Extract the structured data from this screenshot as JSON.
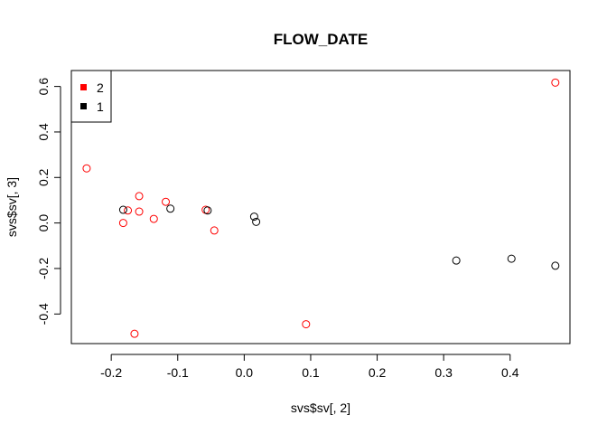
{
  "chart_data": {
    "type": "scatter",
    "title": "FLOW_DATE",
    "xlabel": "svs$sv[, 2]",
    "ylabel": "svs$sv[, 3]",
    "xlim": [
      -0.26,
      0.49
    ],
    "ylim": [
      -0.53,
      0.67
    ],
    "x_ticks": [
      -0.2,
      -0.1,
      0.0,
      0.1,
      0.2,
      0.3,
      0.4
    ],
    "x_tick_labels": [
      "-0.2",
      "-0.1",
      "0.0",
      "0.1",
      "0.2",
      "0.3",
      "0.4"
    ],
    "y_ticks": [
      -0.4,
      -0.2,
      0.0,
      0.2,
      0.4,
      0.6
    ],
    "y_tick_labels": [
      "-0.4",
      "-0.2",
      "0.0",
      "0.2",
      "0.4",
      "0.6"
    ],
    "grid": false,
    "legend_position": "top-left",
    "series": [
      {
        "name": "2",
        "color": "#ff0000",
        "marker": "open-circle",
        "points": [
          [
            0.468,
            0.617
          ],
          [
            -0.237,
            0.24
          ],
          [
            -0.158,
            0.118
          ],
          [
            -0.118,
            0.093
          ],
          [
            -0.175,
            0.055
          ],
          [
            -0.158,
            0.05
          ],
          [
            -0.058,
            0.058
          ],
          [
            -0.136,
            0.018
          ],
          [
            -0.182,
            0.0
          ],
          [
            -0.045,
            -0.033
          ],
          [
            0.093,
            -0.445
          ],
          [
            -0.165,
            -0.487
          ]
        ]
      },
      {
        "name": "1",
        "color": "#000000",
        "marker": "open-circle",
        "points": [
          [
            -0.182,
            0.058
          ],
          [
            -0.111,
            0.063
          ],
          [
            -0.055,
            0.055
          ],
          [
            0.015,
            0.028
          ],
          [
            0.018,
            0.005
          ],
          [
            0.319,
            -0.165
          ],
          [
            0.402,
            -0.157
          ],
          [
            0.468,
            -0.188
          ]
        ]
      }
    ]
  }
}
